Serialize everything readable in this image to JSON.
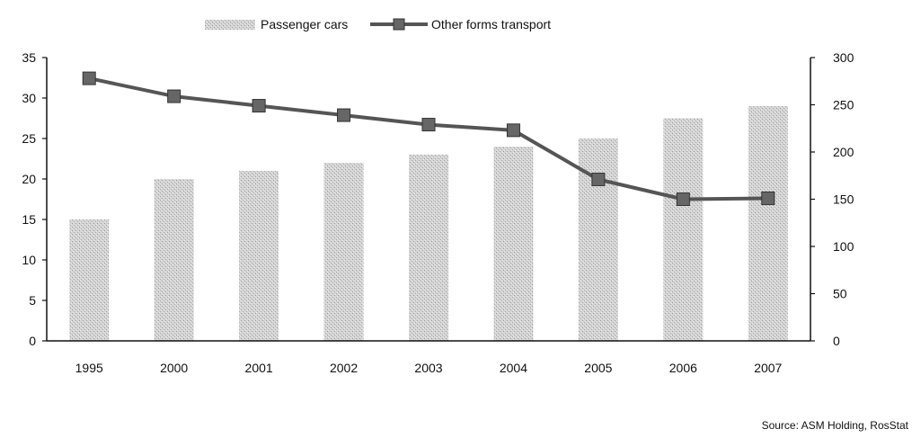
{
  "chart_data": {
    "type": "bar",
    "title": "",
    "categories": [
      "1995",
      "2000",
      "2001",
      "2002",
      "2003",
      "2004",
      "2005",
      "2006",
      "2007"
    ],
    "series": [
      {
        "name": "Passenger cars",
        "type": "bar",
        "axis": "left",
        "color": "#c9c9c9",
        "values": [
          15,
          20,
          21,
          22,
          23,
          24,
          25,
          27.5,
          29
        ]
      },
      {
        "name": "Other forms transport",
        "type": "line",
        "axis": "right",
        "color": "#555555",
        "marker": "square",
        "values": [
          278,
          259,
          249,
          239,
          229,
          223,
          171,
          150,
          151
        ]
      }
    ],
    "y_left": {
      "min": 0,
      "max": 35,
      "ticks": [
        "0",
        "5",
        "10",
        "15",
        "20",
        "25",
        "30",
        "35"
      ]
    },
    "y_right": {
      "min": 0,
      "max": 300,
      "ticks": [
        "0",
        "50",
        "100",
        "150",
        "200",
        "250",
        "300"
      ]
    },
    "grid": false,
    "legend_position": "top"
  },
  "source": "Source: ASM Holding, RosStat"
}
